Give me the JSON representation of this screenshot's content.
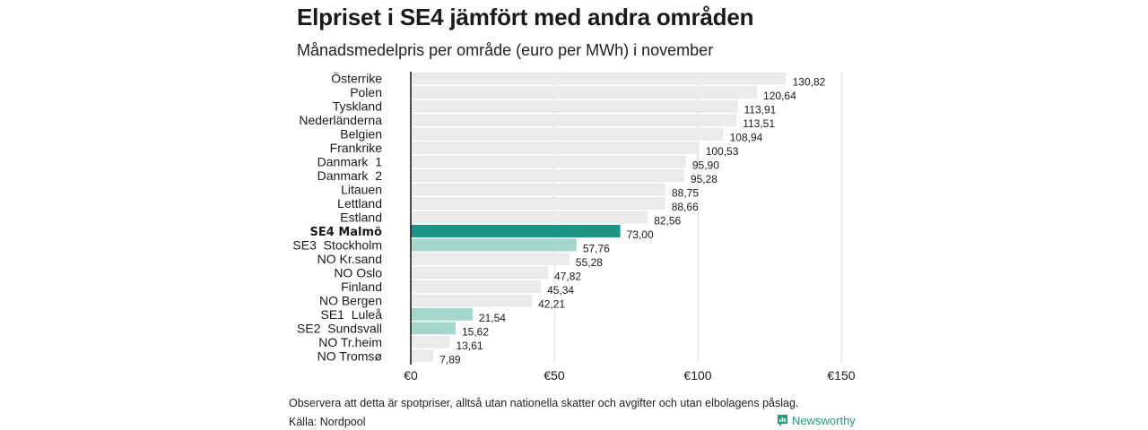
{
  "title": "Elpriset i SE4 jämfört med andra områden",
  "subtitle": "Månadsmedelpris per område (euro per MWh) i november",
  "note": "Observera att detta är spotpriser, alltså utan nationella skatter och avgifter och utan elbolagens påslag.",
  "source": "Källa: Nordpool",
  "brand": {
    "name": "Newsworthy",
    "icon": "newsworthy-logo-icon"
  },
  "colors": {
    "highlight": "#1a9583",
    "swedish": "#a6d5cc",
    "other": "#ebebeb",
    "axis": "#111111",
    "grid": "#d8d8d8"
  },
  "chart_data": {
    "type": "bar",
    "orientation": "horizontal",
    "categories": [
      "Österrike",
      "Polen",
      "Tyskland",
      "Nederländerna",
      "Belgien",
      "Frankrike",
      "Danmark  1",
      "Danmark  2",
      "Litauen",
      "Lettland",
      "Estland",
      "SE4 Malmö",
      "SE3  Stockholm",
      "NO Kr.sand",
      "NO Oslo",
      "Finland",
      "NO Bergen",
      "SE1  Luleå",
      "SE2  Sundsvall",
      "NO Tr.heim",
      "NO Tromsø"
    ],
    "values": [
      130.82,
      120.64,
      113.91,
      113.51,
      108.94,
      100.53,
      95.9,
      95.28,
      88.75,
      88.66,
      82.56,
      73.0,
      57.76,
      55.28,
      47.82,
      45.34,
      42.21,
      21.54,
      15.62,
      13.61,
      7.89
    ],
    "value_labels": [
      "130,82",
      "120,64",
      "113,91",
      "113,51",
      "108,94",
      "100,53",
      "95,90",
      "95,28",
      "88,75",
      "88,66",
      "82,56",
      "73,00",
      "57,76",
      "55,28",
      "47,82",
      "45,34",
      "42,21",
      "21,54",
      "15,62",
      "13,61",
      "7,89"
    ],
    "groups": [
      "other",
      "other",
      "other",
      "other",
      "other",
      "other",
      "other",
      "other",
      "other",
      "other",
      "other",
      "highlight",
      "swedish",
      "other",
      "other",
      "other",
      "other",
      "swedish",
      "swedish",
      "other",
      "other"
    ],
    "xlim": [
      0,
      150
    ],
    "xticks": [
      0,
      50,
      100,
      150
    ],
    "xtick_labels": [
      "€0",
      "€50",
      "€100",
      "€150"
    ],
    "grid": true
  }
}
